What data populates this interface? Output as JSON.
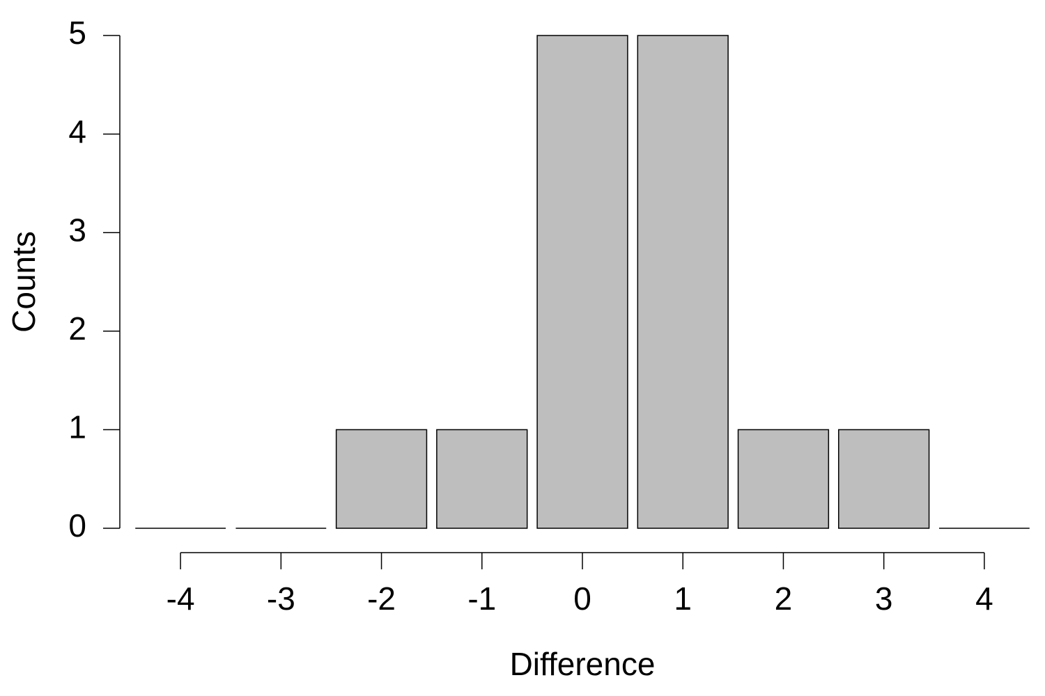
{
  "chart_data": {
    "type": "bar",
    "x_label": "Difference",
    "y_label": "Counts",
    "x": [
      -4,
      -3,
      -2,
      -1,
      0,
      1,
      2,
      3,
      4
    ],
    "values": [
      0,
      0,
      1,
      1,
      5,
      5,
      1,
      1,
      0
    ],
    "color": "#bebebe",
    "xlim": [
      -4.5,
      4.5
    ],
    "xticks": [
      -4,
      -3,
      -2,
      -1,
      0,
      1,
      2,
      3,
      4
    ],
    "ylim": [
      0,
      5
    ],
    "yticks": [
      0,
      1,
      2,
      3,
      4,
      5
    ]
  }
}
